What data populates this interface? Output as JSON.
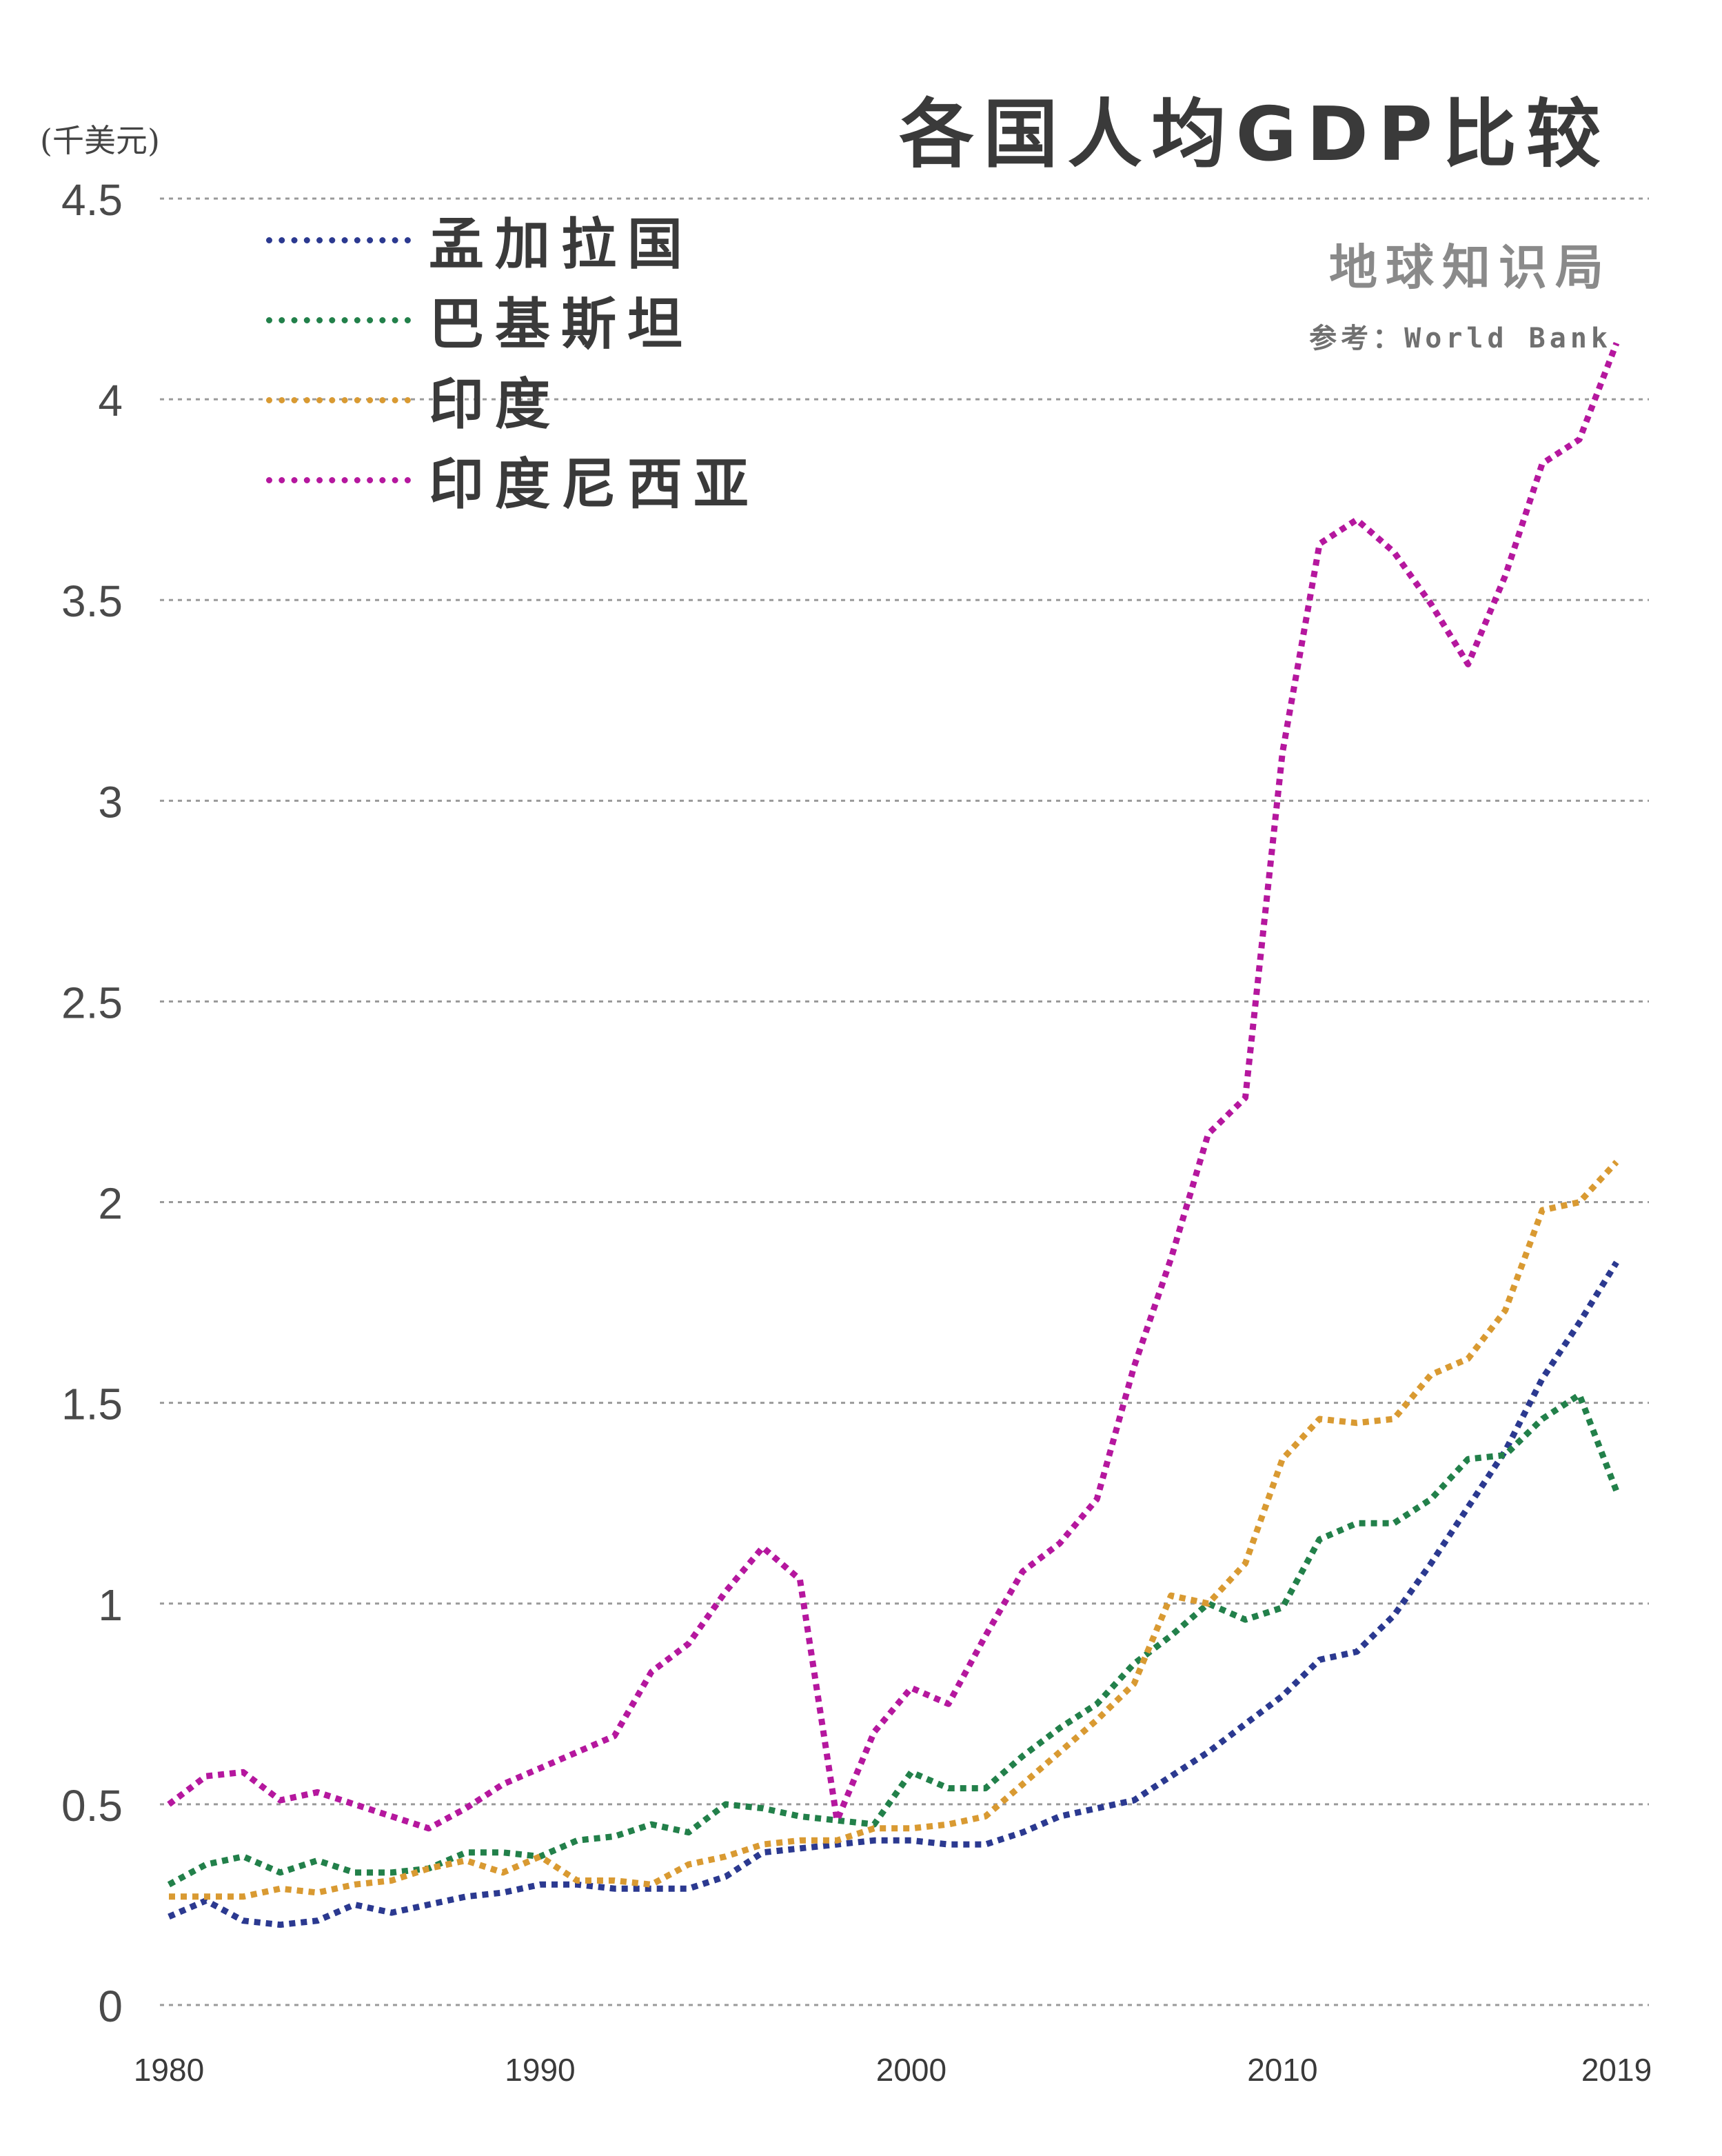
{
  "header": {
    "title": "各国人均GDP比较",
    "brand": "地球知识局",
    "source": "参考：World Bank",
    "unit": "(千美元)"
  },
  "chart_data": {
    "type": "line",
    "title": "各国人均GDP比较",
    "ylabel": "(千美元)",
    "xlabel": "",
    "xlim": [
      1980,
      2019
    ],
    "ylim": [
      0,
      4.5
    ],
    "grid": true,
    "line_style": "dotted",
    "legend_position": "top-left",
    "x_ticks": [
      1980,
      1990,
      2000,
      2010,
      2019
    ],
    "y_ticks": [
      0,
      0.5,
      1,
      1.5,
      2,
      2.5,
      3,
      3.5,
      4,
      4.5
    ],
    "y_tick_labels": [
      "0",
      "0.5",
      "1",
      "1.5",
      "2",
      "2.5",
      "3",
      "3.5",
      "4",
      "4.5"
    ],
    "x": [
      1980,
      1981,
      1982,
      1983,
      1984,
      1985,
      1986,
      1987,
      1988,
      1989,
      1990,
      1991,
      1992,
      1993,
      1994,
      1995,
      1996,
      1997,
      1998,
      1999,
      2000,
      2001,
      2002,
      2003,
      2004,
      2005,
      2006,
      2007,
      2008,
      2009,
      2010,
      2011,
      2012,
      2013,
      2014,
      2015,
      2016,
      2017,
      2018,
      2019
    ],
    "series": [
      {
        "name": "孟加拉国",
        "color": "#2b3990",
        "values": [
          0.22,
          0.26,
          0.21,
          0.2,
          0.21,
          0.25,
          0.23,
          0.25,
          0.27,
          0.28,
          0.3,
          0.3,
          0.29,
          0.29,
          0.29,
          0.32,
          0.38,
          0.39,
          0.4,
          0.41,
          0.41,
          0.4,
          0.4,
          0.43,
          0.47,
          0.49,
          0.51,
          0.57,
          0.63,
          0.7,
          0.77,
          0.86,
          0.88,
          0.97,
          1.1,
          1.24,
          1.38,
          1.56,
          1.7,
          1.85
        ]
      },
      {
        "name": "巴基斯坦",
        "color": "#22804a",
        "values": [
          0.3,
          0.35,
          0.37,
          0.33,
          0.36,
          0.33,
          0.33,
          0.34,
          0.38,
          0.38,
          0.37,
          0.41,
          0.42,
          0.45,
          0.43,
          0.5,
          0.49,
          0.47,
          0.46,
          0.45,
          0.58,
          0.54,
          0.54,
          0.62,
          0.69,
          0.75,
          0.85,
          0.92,
          1.0,
          0.96,
          0.99,
          1.16,
          1.2,
          1.2,
          1.26,
          1.36,
          1.37,
          1.46,
          1.52,
          1.28
        ]
      },
      {
        "name": "印度",
        "color": "#d99a32",
        "values": [
          0.27,
          0.27,
          0.27,
          0.29,
          0.28,
          0.3,
          0.31,
          0.34,
          0.36,
          0.33,
          0.37,
          0.31,
          0.31,
          0.3,
          0.35,
          0.37,
          0.4,
          0.41,
          0.41,
          0.44,
          0.44,
          0.45,
          0.47,
          0.55,
          0.63,
          0.71,
          0.8,
          1.02,
          1.0,
          1.1,
          1.36,
          1.46,
          1.45,
          1.46,
          1.57,
          1.61,
          1.73,
          1.98,
          2.0,
          2.1
        ]
      },
      {
        "name": "印度尼西亚",
        "color": "#b5179e",
        "values": [
          0.5,
          0.57,
          0.58,
          0.51,
          0.53,
          0.5,
          0.47,
          0.44,
          0.49,
          0.55,
          0.59,
          0.63,
          0.67,
          0.83,
          0.9,
          1.03,
          1.14,
          1.06,
          0.46,
          0.68,
          0.79,
          0.75,
          0.92,
          1.08,
          1.15,
          1.26,
          1.59,
          1.86,
          2.17,
          2.26,
          3.12,
          3.64,
          3.7,
          3.62,
          3.49,
          3.34,
          3.56,
          3.84,
          3.9,
          4.14
        ]
      }
    ]
  }
}
